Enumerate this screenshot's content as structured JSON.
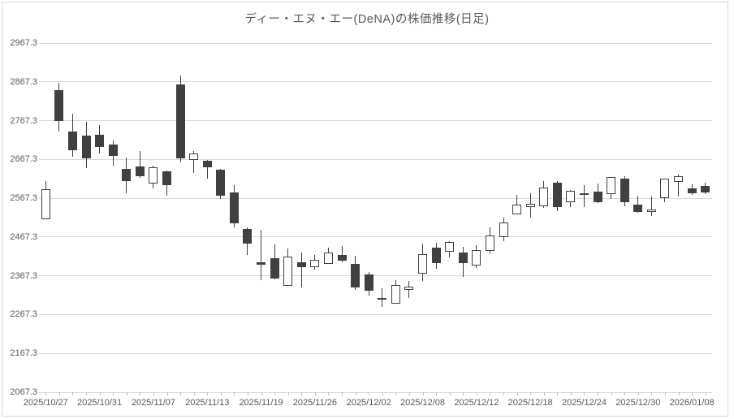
{
  "chart_data": {
    "type": "candlestick",
    "title": "ディー・エヌ・エー(DeNA)の株価推移(日足)",
    "legend": "none",
    "grid": "horizontal",
    "y_axis": {
      "min": 2067.3,
      "max": 2967.3,
      "step": 100,
      "tick_labels": [
        "2967.3",
        "2867.3",
        "2767.3",
        "2667.3",
        "2567.3",
        "2467.3",
        "2367.3",
        "2267.3",
        "2167.3",
        "2067.3"
      ]
    },
    "x_axis": {
      "tick_labels": [
        {
          "index": 0,
          "label": "2025/10/27"
        },
        {
          "index": 4,
          "label": "2025/10/31"
        },
        {
          "index": 8,
          "label": "2025/11/07"
        },
        {
          "index": 12,
          "label": "2025/11/13"
        },
        {
          "index": 16,
          "label": "2025/11/19"
        },
        {
          "index": 20,
          "label": "2025/11/26"
        },
        {
          "index": 24,
          "label": "2025/12/02"
        },
        {
          "index": 28,
          "label": "2025/12/08"
        },
        {
          "index": 32,
          "label": "2025/12/12"
        },
        {
          "index": 36,
          "label": "2025/12/18"
        },
        {
          "index": 40,
          "label": "2025/12/24"
        },
        {
          "index": 44,
          "label": "2025/12/30"
        },
        {
          "index": 48,
          "label": "2026/01/08"
        }
      ]
    },
    "colors": {
      "down_fill": "#404040",
      "up_fill": "#ffffff",
      "outline": "#404040",
      "gridline": "#d9d9d9",
      "axis_text": "#595959",
      "tick_mark": "#bfbfbf",
      "chart_border": "#d9d9d9"
    },
    "candles": [
      {
        "date": "2025/10/27",
        "open": 2513,
        "high": 2612,
        "low": 2513,
        "close": 2591
      },
      {
        "date": "2025/10/28",
        "open": 2845,
        "high": 2865,
        "low": 2740,
        "close": 2767
      },
      {
        "date": "2025/10/29",
        "open": 2740,
        "high": 2785,
        "low": 2674,
        "close": 2692
      },
      {
        "date": "2025/10/30",
        "open": 2729,
        "high": 2764,
        "low": 2644,
        "close": 2671
      },
      {
        "date": "2025/10/31",
        "open": 2730,
        "high": 2756,
        "low": 2683,
        "close": 2700
      },
      {
        "date": "2025/11/04",
        "open": 2705,
        "high": 2717,
        "low": 2652,
        "close": 2676
      },
      {
        "date": "2025/11/05",
        "open": 2643,
        "high": 2672,
        "low": 2580,
        "close": 2612
      },
      {
        "date": "2025/11/06",
        "open": 2649,
        "high": 2689,
        "low": 2619,
        "close": 2625
      },
      {
        "date": "2025/11/07",
        "open": 2605,
        "high": 2651,
        "low": 2592,
        "close": 2647
      },
      {
        "date": "2025/11/10",
        "open": 2637,
        "high": 2638,
        "low": 2574,
        "close": 2602
      },
      {
        "date": "2025/11/11",
        "open": 2860,
        "high": 2884,
        "low": 2659,
        "close": 2670
      },
      {
        "date": "2025/11/12",
        "open": 2666,
        "high": 2688,
        "low": 2632,
        "close": 2682
      },
      {
        "date": "2025/11/13",
        "open": 2663,
        "high": 2666,
        "low": 2618,
        "close": 2647
      },
      {
        "date": "2025/11/14",
        "open": 2640,
        "high": 2642,
        "low": 2566,
        "close": 2574
      },
      {
        "date": "2025/11/17",
        "open": 2583,
        "high": 2602,
        "low": 2493,
        "close": 2503
      },
      {
        "date": "2025/11/18",
        "open": 2487,
        "high": 2493,
        "low": 2420,
        "close": 2450
      },
      {
        "date": "2025/11/19",
        "open": 2402,
        "high": 2486,
        "low": 2356,
        "close": 2396
      },
      {
        "date": "2025/11/20",
        "open": 2413,
        "high": 2448,
        "low": 2358,
        "close": 2360
      },
      {
        "date": "2025/11/21",
        "open": 2342,
        "high": 2438,
        "low": 2342,
        "close": 2416
      },
      {
        "date": "2025/11/25",
        "open": 2403,
        "high": 2427,
        "low": 2337,
        "close": 2389
      },
      {
        "date": "2025/11/26",
        "open": 2389,
        "high": 2420,
        "low": 2383,
        "close": 2409
      },
      {
        "date": "2025/11/27",
        "open": 2398,
        "high": 2439,
        "low": 2398,
        "close": 2428
      },
      {
        "date": "2025/11/28",
        "open": 2420,
        "high": 2444,
        "low": 2402,
        "close": 2407
      },
      {
        "date": "2025/12/01",
        "open": 2399,
        "high": 2418,
        "low": 2331,
        "close": 2338
      },
      {
        "date": "2025/12/02",
        "open": 2371,
        "high": 2377,
        "low": 2316,
        "close": 2328
      },
      {
        "date": "2025/12/03",
        "open": 2311,
        "high": 2335,
        "low": 2287,
        "close": 2308
      },
      {
        "date": "2025/12/04",
        "open": 2296,
        "high": 2356,
        "low": 2296,
        "close": 2344
      },
      {
        "date": "2025/12/05",
        "open": 2332,
        "high": 2354,
        "low": 2311,
        "close": 2340
      },
      {
        "date": "2025/12/08",
        "open": 2372,
        "high": 2451,
        "low": 2355,
        "close": 2424
      },
      {
        "date": "2025/12/09",
        "open": 2440,
        "high": 2453,
        "low": 2386,
        "close": 2400
      },
      {
        "date": "2025/12/10",
        "open": 2429,
        "high": 2457,
        "low": 2415,
        "close": 2455
      },
      {
        "date": "2025/12/11",
        "open": 2427,
        "high": 2442,
        "low": 2365,
        "close": 2401
      },
      {
        "date": "2025/12/12",
        "open": 2393,
        "high": 2446,
        "low": 2387,
        "close": 2434
      },
      {
        "date": "2025/12/15",
        "open": 2431,
        "high": 2493,
        "low": 2425,
        "close": 2472
      },
      {
        "date": "2025/12/16",
        "open": 2467,
        "high": 2518,
        "low": 2456,
        "close": 2505
      },
      {
        "date": "2025/12/17",
        "open": 2525,
        "high": 2575,
        "low": 2525,
        "close": 2551
      },
      {
        "date": "2025/12/18",
        "open": 2545,
        "high": 2580,
        "low": 2518,
        "close": 2553
      },
      {
        "date": "2025/12/19",
        "open": 2547,
        "high": 2612,
        "low": 2543,
        "close": 2595
      },
      {
        "date": "2025/12/22",
        "open": 2607,
        "high": 2612,
        "low": 2533,
        "close": 2545
      },
      {
        "date": "2025/12/23",
        "open": 2558,
        "high": 2588,
        "low": 2545,
        "close": 2587
      },
      {
        "date": "2025/12/24",
        "open": 2577,
        "high": 2601,
        "low": 2545,
        "close": 2580
      },
      {
        "date": "2025/12/25",
        "open": 2585,
        "high": 2605,
        "low": 2556,
        "close": 2556
      },
      {
        "date": "2025/12/26",
        "open": 2578,
        "high": 2622,
        "low": 2566,
        "close": 2622
      },
      {
        "date": "2025/12/29",
        "open": 2618,
        "high": 2625,
        "low": 2547,
        "close": 2556
      },
      {
        "date": "2025/12/30",
        "open": 2550,
        "high": 2573,
        "low": 2529,
        "close": 2531
      },
      {
        "date": "2026/01/05",
        "open": 2532,
        "high": 2571,
        "low": 2522,
        "close": 2539
      },
      {
        "date": "2026/01/06",
        "open": 2567,
        "high": 2618,
        "low": 2556,
        "close": 2618
      },
      {
        "date": "2026/01/07",
        "open": 2609,
        "high": 2628,
        "low": 2572,
        "close": 2623
      },
      {
        "date": "2026/01/08",
        "open": 2593,
        "high": 2603,
        "low": 2576,
        "close": 2580
      },
      {
        "date": "2026/01/09",
        "open": 2598,
        "high": 2608,
        "low": 2577,
        "close": 2582
      }
    ]
  }
}
